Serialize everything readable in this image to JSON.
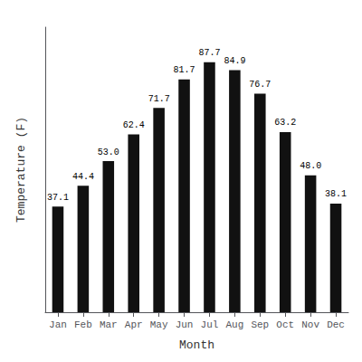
{
  "chart_data": {
    "type": "bar",
    "categories": [
      "Jan",
      "Feb",
      "Mar",
      "Apr",
      "May",
      "Jun",
      "Jul",
      "Aug",
      "Sep",
      "Oct",
      "Nov",
      "Dec"
    ],
    "values": [
      37.1,
      44.4,
      53.0,
      62.4,
      71.7,
      81.7,
      87.7,
      84.9,
      76.7,
      63.2,
      48.0,
      38.1
    ],
    "value_labels": [
      "37.1",
      "44.4",
      "53.0",
      "62.4",
      "71.7",
      "81.7",
      "87.7",
      "84.9",
      "76.7",
      "63.2",
      "48.0",
      "38.1"
    ],
    "color": "#111111",
    "xlabel": "Month",
    "ylabel": "Temperature (F)",
    "ylim": [
      0,
      100
    ],
    "data_labels": true,
    "tick_labels": "x",
    "grid": false
  }
}
